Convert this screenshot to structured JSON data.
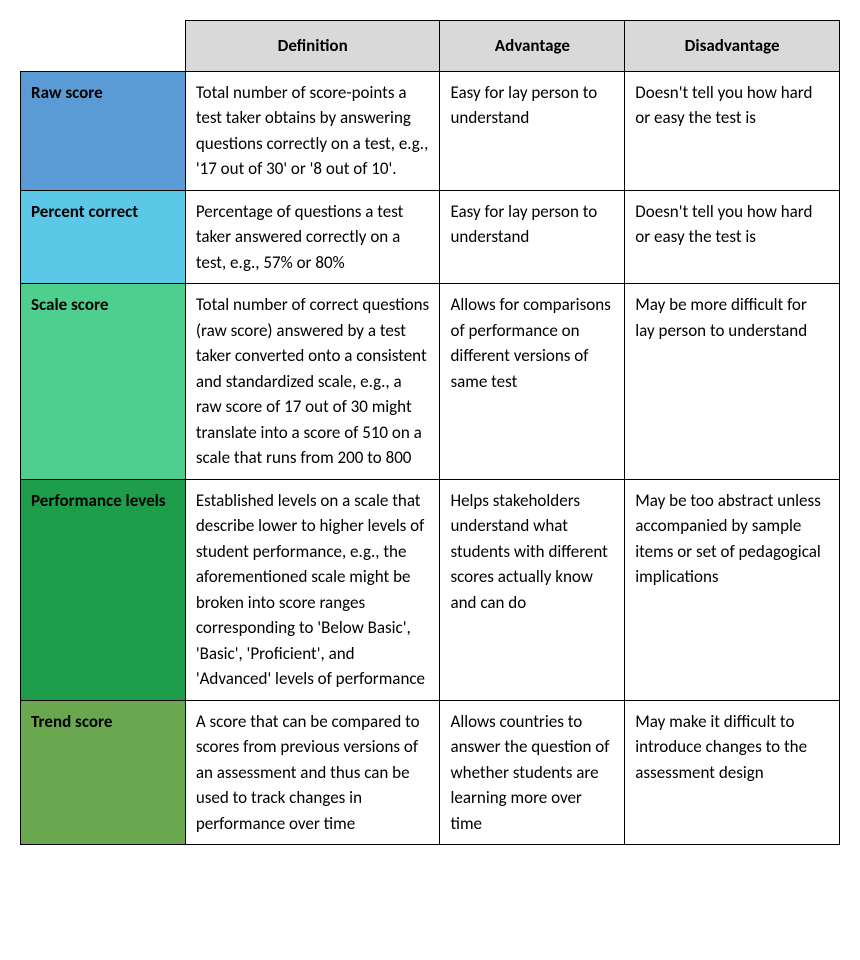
{
  "table": {
    "headers": {
      "empty": "",
      "definition": "Definition",
      "advantage": "Advantage",
      "disadvantage": "Disadvantage"
    },
    "rows": [
      {
        "label": "Raw score",
        "definition": "Total number of score-points a test taker obtains by answering questions correctly on a test, e.g., '17 out of 30' or '8 out of 10'.",
        "advantage": "Easy for lay person to understand",
        "disadvantage": "Doesn't tell you how hard or easy the test is",
        "bg_color": "#5b9bd5",
        "class": "row-raw-score"
      },
      {
        "label": "Percent correct",
        "definition": "Percentage of questions a test taker answered correctly on a test, e.g., 57% or 80%",
        "advantage": "Easy for lay person to understand",
        "disadvantage": "Doesn't tell you how hard or easy the test is",
        "bg_color": "#5bc8e8",
        "class": "row-percent"
      },
      {
        "label": "Scale score",
        "definition": "Total number of correct questions (raw score) answered by a test taker converted onto a consistent and standardized scale, e.g., a raw score of 17 out of 30 might translate into a score of 510 on a scale that runs from 200 to 800",
        "advantage": "Allows for comparisons of performance on different versions of same test",
        "disadvantage": "May be more difficult for lay person to understand",
        "bg_color": "#4dd08e",
        "class": "row-scale"
      },
      {
        "label": "Performance levels",
        "definition": "Established levels on a scale that describe lower to higher levels of student performance, e.g., the aforementioned scale might be broken into score ranges corresponding to 'Below Basic', 'Basic', 'Proficient', and 'Advanced' levels of performance",
        "advantage": "Helps stakeholders understand what students with different scores actually know and can do",
        "disadvantage": "May be too abstract unless accompanied by sample items or set of pedagogical implications",
        "bg_color": "#1e9e4a",
        "class": "row-performance"
      },
      {
        "label": "Trend score",
        "definition": "A score that can be compared to scores from previous versions of an assessment and thus can be used to track changes in performance over time",
        "advantage": "Allows countries to answer the question of whether students are learning more over time",
        "disadvantage": "May make it difficult to introduce changes to the assessment design",
        "bg_color": "#6aa84f",
        "class": "row-trend"
      }
    ],
    "header_bg": "#d9d9d9",
    "border_color": "#000000",
    "font_family": "Calibri, Arial, sans-serif",
    "font_size": 17,
    "column_widths": {
      "label": 165,
      "definition": 255,
      "advantage": 185,
      "disadvantage": 215
    }
  }
}
